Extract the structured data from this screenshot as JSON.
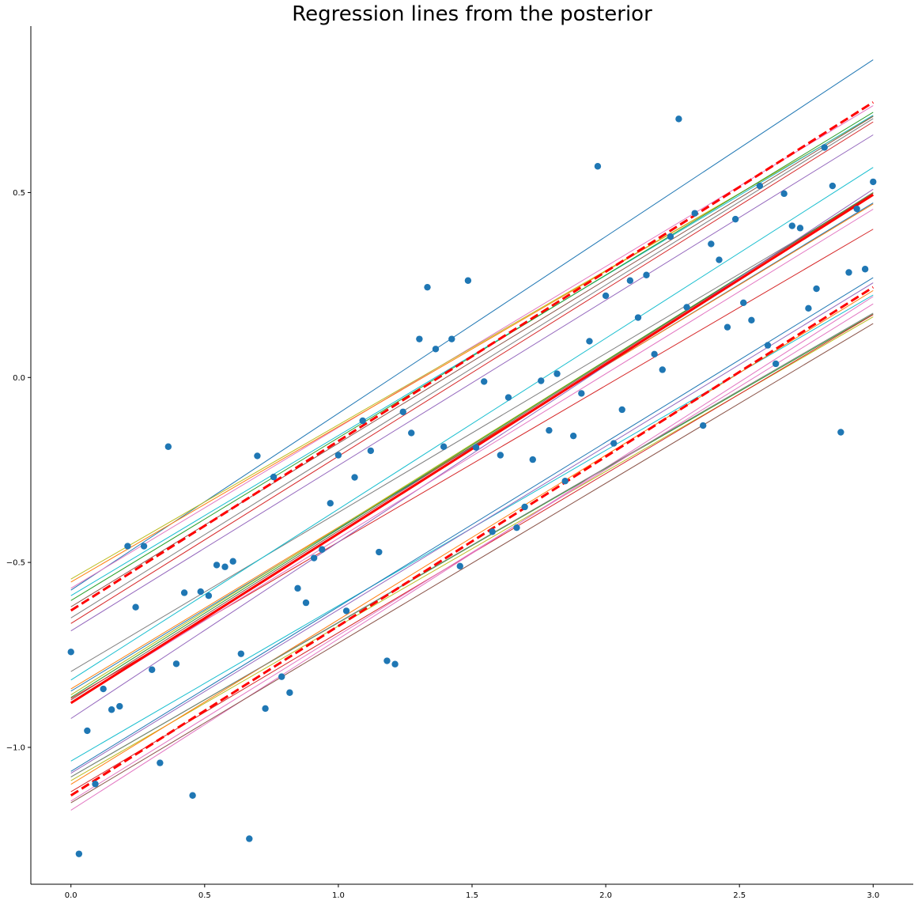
{
  "chart_data": {
    "type": "scatter",
    "title": "Regression lines from the posterior",
    "xlabel": "",
    "ylabel": "",
    "xlim": [
      -0.15,
      3.15
    ],
    "ylim": [
      -1.37,
      0.95
    ],
    "grid": false,
    "legend": "none",
    "x_ticks": [
      0.0,
      0.5,
      1.0,
      1.5,
      2.0,
      2.5,
      3.0
    ],
    "x_tick_labels": [
      "0.0",
      "0.5",
      "1.0",
      "1.5",
      "2.0",
      "2.5",
      "3.0"
    ],
    "y_ticks": [
      -1.0,
      -0.5,
      0.0,
      0.5
    ],
    "y_tick_labels": [
      "−1.0",
      "−0.5",
      "0.0",
      "0.5"
    ],
    "point_color": "#1f77b4",
    "points": [
      [
        0.0,
        -0.742
      ],
      [
        0.03,
        -1.288
      ],
      [
        0.061,
        -0.955
      ],
      [
        0.091,
        -1.099
      ],
      [
        0.121,
        -0.842
      ],
      [
        0.152,
        -0.898
      ],
      [
        0.182,
        -0.889
      ],
      [
        0.212,
        -0.456
      ],
      [
        0.242,
        -0.621
      ],
      [
        0.273,
        -0.456
      ],
      [
        0.303,
        -0.79
      ],
      [
        0.333,
        -1.042
      ],
      [
        0.364,
        -0.187
      ],
      [
        0.394,
        -0.774
      ],
      [
        0.424,
        -0.582
      ],
      [
        0.455,
        -1.13
      ],
      [
        0.485,
        -0.579
      ],
      [
        0.515,
        -0.59
      ],
      [
        0.545,
        -0.507
      ],
      [
        0.576,
        -0.512
      ],
      [
        0.606,
        -0.497
      ],
      [
        0.636,
        -0.747
      ],
      [
        0.667,
        -1.247
      ],
      [
        0.697,
        -0.212
      ],
      [
        0.727,
        -0.895
      ],
      [
        0.758,
        -0.269
      ],
      [
        0.788,
        -0.809
      ],
      [
        0.818,
        -0.852
      ],
      [
        0.848,
        -0.57
      ],
      [
        0.879,
        -0.609
      ],
      [
        0.909,
        -0.488
      ],
      [
        0.939,
        -0.465
      ],
      [
        0.97,
        -0.34
      ],
      [
        1.0,
        -0.21
      ],
      [
        1.03,
        -0.631
      ],
      [
        1.061,
        -0.27
      ],
      [
        1.091,
        -0.117
      ],
      [
        1.121,
        -0.198
      ],
      [
        1.152,
        -0.472
      ],
      [
        1.182,
        -0.766
      ],
      [
        1.212,
        -0.775
      ],
      [
        1.242,
        -0.093
      ],
      [
        1.273,
        -0.15
      ],
      [
        1.303,
        0.104
      ],
      [
        1.333,
        0.244
      ],
      [
        1.364,
        0.077
      ],
      [
        1.394,
        -0.187
      ],
      [
        1.424,
        0.104
      ],
      [
        1.455,
        -0.51
      ],
      [
        1.485,
        0.262
      ],
      [
        1.515,
        -0.189
      ],
      [
        1.545,
        -0.011
      ],
      [
        1.576,
        -0.417
      ],
      [
        1.606,
        -0.21
      ],
      [
        1.636,
        -0.054
      ],
      [
        1.667,
        -0.406
      ],
      [
        1.697,
        -0.35
      ],
      [
        1.727,
        -0.222
      ],
      [
        1.758,
        -0.009
      ],
      [
        1.788,
        -0.143
      ],
      [
        1.818,
        0.01
      ],
      [
        1.848,
        -0.28
      ],
      [
        1.879,
        -0.158
      ],
      [
        1.909,
        -0.043
      ],
      [
        1.939,
        0.098
      ],
      [
        1.97,
        0.571
      ],
      [
        2.0,
        0.221
      ],
      [
        2.03,
        -0.178
      ],
      [
        2.061,
        -0.087
      ],
      [
        2.091,
        0.262
      ],
      [
        2.121,
        0.162
      ],
      [
        2.152,
        0.277
      ],
      [
        2.182,
        0.063
      ],
      [
        2.212,
        0.021
      ],
      [
        2.242,
        0.381
      ],
      [
        2.273,
        0.699
      ],
      [
        2.303,
        0.19
      ],
      [
        2.333,
        0.444
      ],
      [
        2.364,
        -0.13
      ],
      [
        2.394,
        0.361
      ],
      [
        2.424,
        0.318
      ],
      [
        2.455,
        0.136
      ],
      [
        2.485,
        0.428
      ],
      [
        2.515,
        0.202
      ],
      [
        2.545,
        0.155
      ],
      [
        2.576,
        0.518
      ],
      [
        2.606,
        0.087
      ],
      [
        2.636,
        0.037
      ],
      [
        2.667,
        0.497
      ],
      [
        2.697,
        0.41
      ],
      [
        2.727,
        0.404
      ],
      [
        2.758,
        0.187
      ],
      [
        2.788,
        0.24
      ],
      [
        2.818,
        0.622
      ],
      [
        2.848,
        0.518
      ],
      [
        2.879,
        -0.148
      ],
      [
        2.909,
        0.284
      ],
      [
        2.939,
        0.456
      ],
      [
        2.97,
        0.293
      ],
      [
        3.0,
        0.529
      ]
    ],
    "regression_lines": [
      {
        "intercept": -0.575,
        "slope": 0.478,
        "color": "#1f77b4"
      },
      {
        "intercept": -0.57,
        "slope": 0.435,
        "color": "#e377c2"
      },
      {
        "intercept": -0.553,
        "slope": 0.42,
        "color": "#ff7f0e"
      },
      {
        "intercept": -0.545,
        "slope": 0.417,
        "color": "#bcbd22"
      },
      {
        "intercept": -0.59,
        "slope": 0.433,
        "color": "#17becf"
      },
      {
        "intercept": -0.603,
        "slope": 0.44,
        "color": "#2ca02c"
      },
      {
        "intercept": -0.62,
        "slope": 0.442,
        "color": "#8c564b"
      },
      {
        "intercept": -0.65,
        "slope": 0.45,
        "color": "#7f7f7f"
      },
      {
        "intercept": -0.685,
        "slope": 0.447,
        "color": "#9467bd"
      },
      {
        "intercept": -0.665,
        "slope": 0.452,
        "color": "#d62728"
      },
      {
        "intercept": -0.795,
        "slope": 0.43,
        "color": "#7f7f7f"
      },
      {
        "intercept": -0.818,
        "slope": 0.462,
        "color": "#17becf"
      },
      {
        "intercept": -0.848,
        "slope": 0.44,
        "color": "#1f77b4"
      },
      {
        "intercept": -0.842,
        "slope": 0.437,
        "color": "#ff7f0e"
      },
      {
        "intercept": -0.858,
        "slope": 0.452,
        "color": "#bcbd22"
      },
      {
        "intercept": -0.865,
        "slope": 0.455,
        "color": "#2ca02c"
      },
      {
        "intercept": -0.872,
        "slope": 0.457,
        "color": "#8c564b"
      },
      {
        "intercept": -0.868,
        "slope": 0.423,
        "color": "#d62728"
      },
      {
        "intercept": -0.922,
        "slope": 0.477,
        "color": "#9467bd"
      },
      {
        "intercept": -0.88,
        "slope": 0.445,
        "color": "#e377c2"
      },
      {
        "intercept": -1.037,
        "slope": 0.42,
        "color": "#17becf"
      },
      {
        "intercept": -1.065,
        "slope": 0.445,
        "color": "#1f77b4"
      },
      {
        "intercept": -1.07,
        "slope": 0.442,
        "color": "#9467bd"
      },
      {
        "intercept": -1.08,
        "slope": 0.417,
        "color": "#2ca02c"
      },
      {
        "intercept": -1.09,
        "slope": 0.418,
        "color": "#bcbd22"
      },
      {
        "intercept": -1.1,
        "slope": 0.445,
        "color": "#ff7f0e"
      },
      {
        "intercept": -1.12,
        "slope": 0.43,
        "color": "#d62728"
      },
      {
        "intercept": -1.145,
        "slope": 0.448,
        "color": "#e377c2"
      },
      {
        "intercept": -1.17,
        "slope": 0.463,
        "color": "#e377c2"
      },
      {
        "intercept": -1.15,
        "slope": 0.432,
        "color": "#8c564b"
      },
      {
        "intercept": -1.08,
        "slope": 0.418,
        "color": "#7f7f7f"
      }
    ],
    "mean_line": {
      "intercept": -0.88,
      "slope": 0.458,
      "color": "#ff0000",
      "style": "solid"
    },
    "interval_lines": [
      {
        "intercept": -0.63,
        "slope": 0.458,
        "color": "#ff0000",
        "style": "dashed"
      },
      {
        "intercept": -1.13,
        "slope": 0.458,
        "color": "#ff0000",
        "style": "dashed"
      }
    ]
  }
}
